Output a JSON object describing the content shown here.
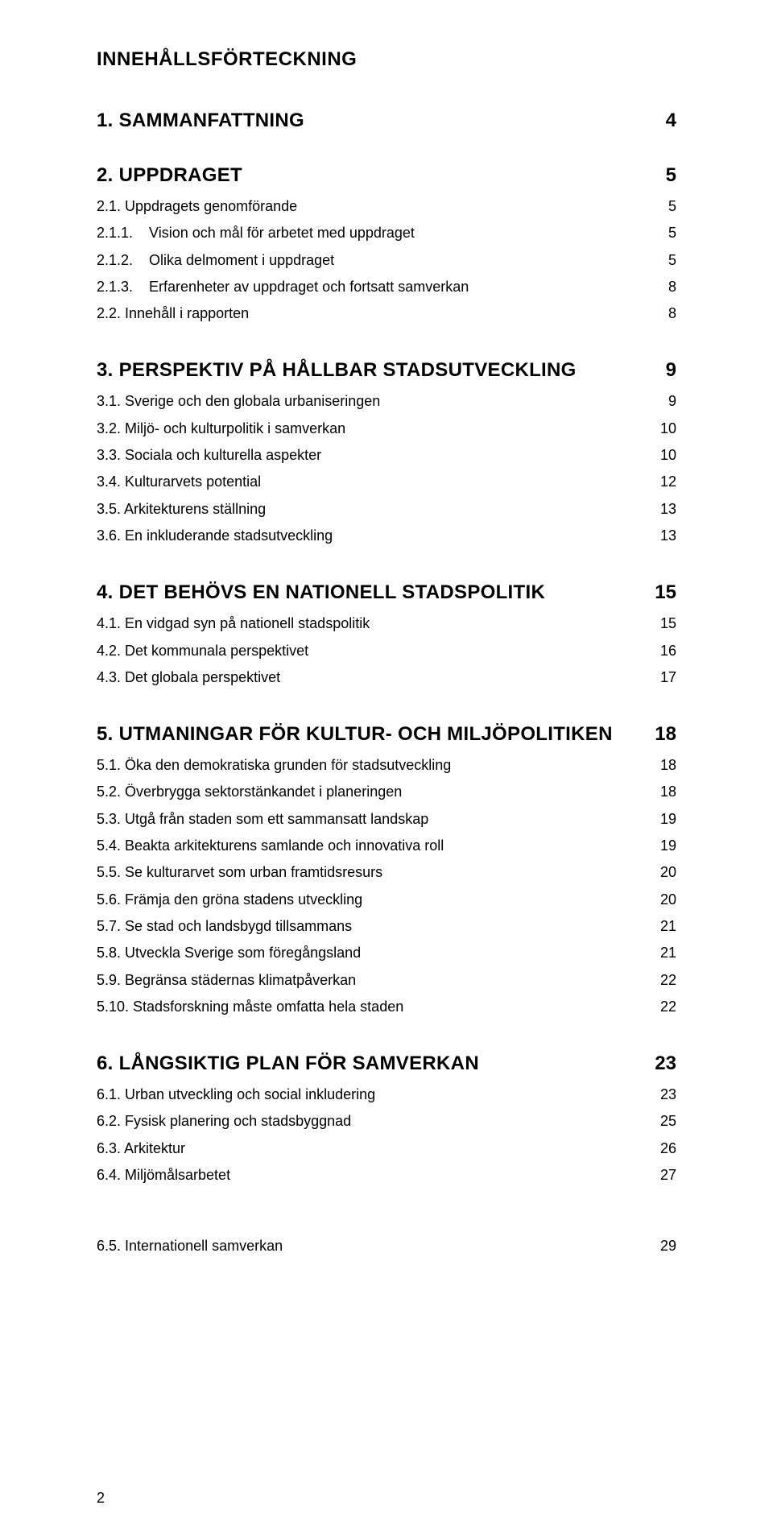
{
  "doc_title": "INNEHÅLLSFÖRTECKNING",
  "sections": [
    {
      "number": "1.",
      "title": "SAMMANFATTNING",
      "page": "4",
      "entries": []
    },
    {
      "number": "2.",
      "title": "UPPDRAGET",
      "page": "5",
      "entries": [
        {
          "label": "2.1. Uppdragets genomförande",
          "page": "5"
        },
        {
          "label": "2.1.1.    Vision och mål för arbetet med uppdraget",
          "page": "5"
        },
        {
          "label": "2.1.2.    Olika delmoment i uppdraget",
          "page": "5"
        },
        {
          "label": "2.1.3.    Erfarenheter av uppdraget och fortsatt samverkan",
          "page": "8"
        },
        {
          "label": "2.2. Innehåll i rapporten",
          "page": "8"
        }
      ]
    },
    {
      "number": "3.",
      "title": "PERSPEKTIV PÅ HÅLLBAR STADSUTVECKLING",
      "page": "9",
      "entries": [
        {
          "label": "3.1. Sverige och den globala urbaniseringen",
          "page": "9"
        },
        {
          "label": "3.2. Miljö- och kulturpolitik i samverkan",
          "page": "10"
        },
        {
          "label": "3.3. Sociala och kulturella aspekter",
          "page": "10"
        },
        {
          "label": "3.4. Kulturarvets potential",
          "page": "12"
        },
        {
          "label": "3.5. Arkitekturens ställning",
          "page": "13"
        },
        {
          "label": "3.6. En inkluderande stadsutveckling",
          "page": "13"
        }
      ]
    },
    {
      "number": "4.",
      "title": "DET BEHÖVS EN NATIONELL STADSPOLITIK",
      "page": "15",
      "entries": [
        {
          "label": "4.1. En vidgad syn på nationell stadspolitik",
          "page": "15"
        },
        {
          "label": "4.2. Det kommunala perspektivet",
          "page": "16"
        },
        {
          "label": "4.3. Det globala perspektivet",
          "page": "17"
        }
      ]
    },
    {
      "number": "5.",
      "title": "UTMANINGAR FÖR KULTUR- OCH MILJÖPOLITIKEN",
      "page": "18",
      "entries": [
        {
          "label": "5.1. Öka den demokratiska grunden för stadsutveckling",
          "page": "18"
        },
        {
          "label": "5.2. Överbrygga sektorstänkandet i planeringen",
          "page": "18"
        },
        {
          "label": "5.3. Utgå från staden som ett sammansatt landskap",
          "page": "19"
        },
        {
          "label": "5.4. Beakta arkitekturens samlande och innovativa roll",
          "page": "19"
        },
        {
          "label": "5.5. Se kulturarvet som urban framtidsresurs",
          "page": "20"
        },
        {
          "label": "5.6. Främja den gröna stadens utveckling",
          "page": "20"
        },
        {
          "label": "5.7. Se stad och landsbygd tillsammans",
          "page": "21"
        },
        {
          "label": "5.8. Utveckla Sverige som föregångsland",
          "page": "21"
        },
        {
          "label": "5.9. Begränsa städernas klimatpåverkan",
          "page": "22"
        },
        {
          "label": "5.10. Stadsforskning måste omfatta hela staden",
          "page": "22"
        }
      ]
    },
    {
      "number": "6.",
      "title": "LÅNGSIKTIG PLAN FÖR SAMVERKAN",
      "page": "23",
      "entries": [
        {
          "label": "6.1. Urban utveckling och social inkludering",
          "page": "23"
        },
        {
          "label": "6.2. Fysisk planering och stadsbyggnad",
          "page": "25"
        },
        {
          "label": "6.3. Arkitektur",
          "page": "26"
        },
        {
          "label": "6.4. Miljömålsarbetet",
          "page": "27"
        }
      ]
    }
  ],
  "standalone_entry": {
    "label": "6.5. Internationell samverkan",
    "page": "29"
  },
  "page_number": "2",
  "heading_tab": "      "
}
